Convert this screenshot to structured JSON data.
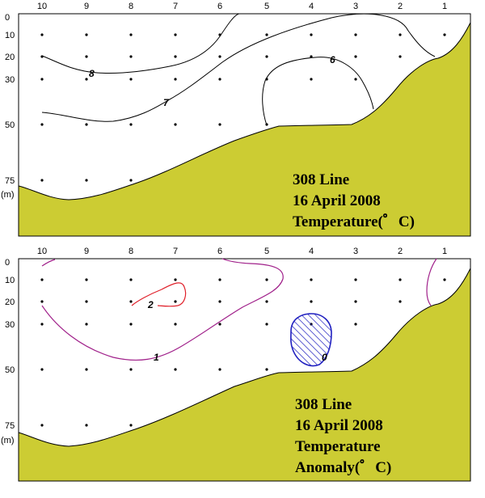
{
  "chart_data": [
    {
      "type": "contour",
      "stations": [
        "10",
        "9",
        "8",
        "7",
        "6",
        "5",
        "4",
        "3",
        "2",
        "1"
      ],
      "depth_ticks": [
        "0",
        "10",
        "20",
        "30",
        "50",
        "75"
      ],
      "depth_values": [
        0,
        10,
        20,
        30,
        50,
        75
      ],
      "depth_unit": "(m)",
      "annotation": [
        "308 Line",
        "16 April 2008",
        "Temperature(゜C)"
      ],
      "contours": [
        {
          "label": "8",
          "color": "#000000"
        },
        {
          "label": "7",
          "color": "#000000"
        },
        {
          "label": "6",
          "color": "#000000"
        }
      ],
      "seabed_color": "#cccc33"
    },
    {
      "type": "contour",
      "stations": [
        "10",
        "9",
        "8",
        "7",
        "6",
        "5",
        "4",
        "3",
        "2",
        "1"
      ],
      "depth_ticks": [
        "0",
        "10",
        "20",
        "30",
        "50",
        "75"
      ],
      "depth_values": [
        0,
        10,
        20,
        30,
        50,
        75
      ],
      "depth_unit": "(m)",
      "annotation": [
        "308 Line",
        "16 April 2008",
        "Temperature",
        "Anomaly(゜C)"
      ],
      "contours": [
        {
          "label": "2",
          "color": "#e0202a"
        },
        {
          "label": "1",
          "color": "#a0208a"
        },
        {
          "label": "0",
          "color": "#2020c0",
          "hatched": true
        }
      ],
      "seabed_color": "#cccc33"
    }
  ]
}
